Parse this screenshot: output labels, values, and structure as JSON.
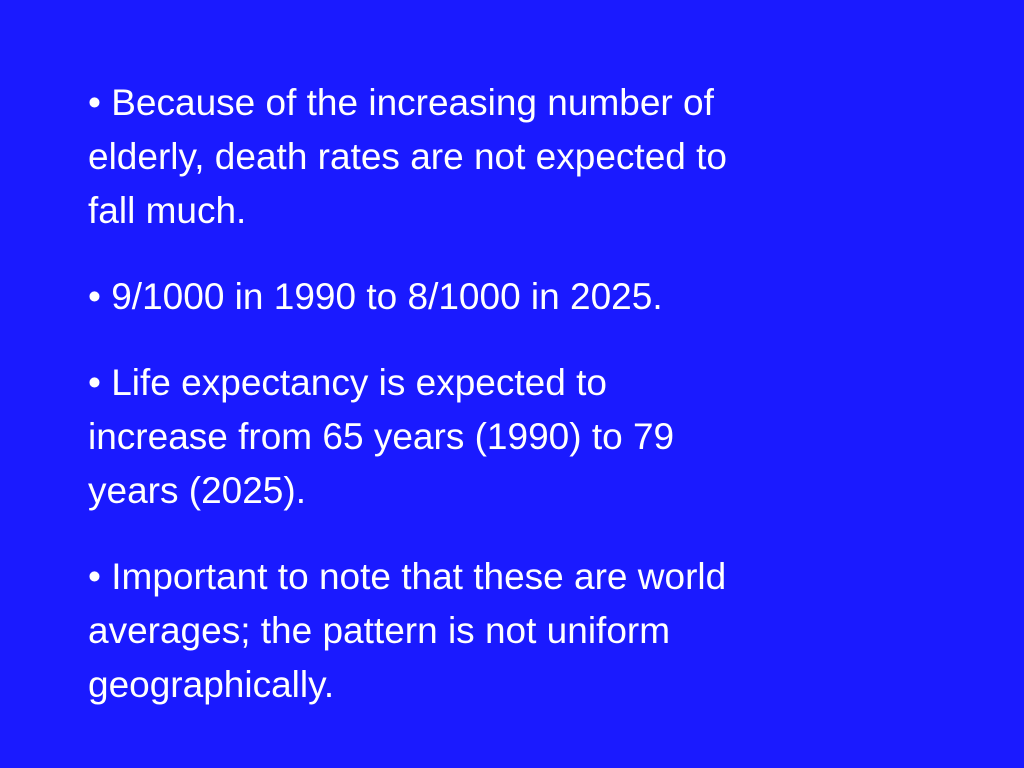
{
  "paragraphs": [
    {
      "lines": [
        "• Because of the increasing number of",
        "elderly, death rates are not expected to",
        "fall much."
      ]
    },
    {
      "lines": [
        "• 9/1000 in 1990 to 8/1000 in 2025."
      ]
    },
    {
      "lines": [
        "• Life expectancy is expected to",
        "increase from 65 years (1990) to 79",
        "years (2025)."
      ]
    },
    {
      "lines": [
        "• Important to note that these are world",
        "averages; the pattern is not uniform",
        "geographically."
      ]
    }
  ]
}
